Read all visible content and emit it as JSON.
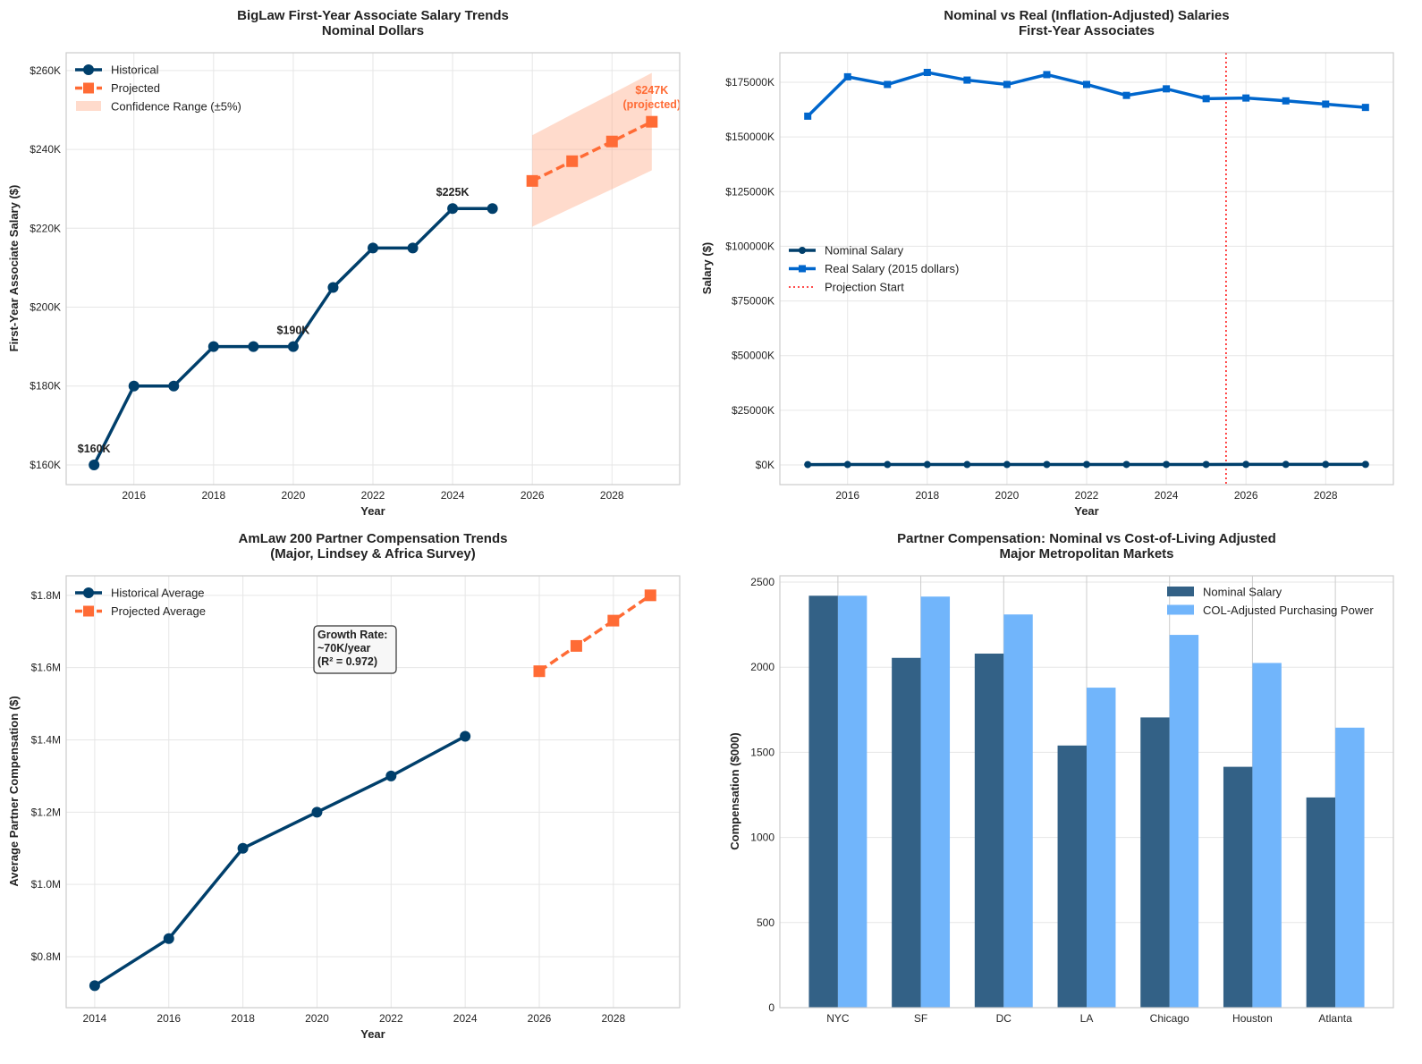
{
  "chart_data": [
    {
      "type": "line",
      "title": [
        "BigLaw First-Year Associate Salary Trends",
        "Nominal Dollars"
      ],
      "xlabel": "Year",
      "ylabel": "First-Year Associate Salary ($)",
      "xlim": [
        2014.3,
        2029.7
      ],
      "ylim": [
        155,
        264.5
      ],
      "xticks": [
        2016,
        2018,
        2020,
        2022,
        2024,
        2026,
        2028
      ],
      "xtick_labels": [
        "2016",
        "2018",
        "2020",
        "2022",
        "2024",
        "2026",
        "2028"
      ],
      "yticks": [
        160,
        180,
        200,
        220,
        240,
        260
      ],
      "ytick_labels": [
        "$160K",
        "$180K",
        "$200K",
        "$220K",
        "$240K",
        "$260K"
      ],
      "grid": true,
      "legend": "top-left",
      "series": [
        {
          "name": "Historical",
          "color": "#003f6b",
          "marker": "circle",
          "dash": false,
          "x": [
            2015,
            2016,
            2017,
            2018,
            2019,
            2020,
            2021,
            2022,
            2023,
            2024,
            2025
          ],
          "y": [
            160,
            180,
            180,
            190,
            190,
            190,
            205,
            215,
            215,
            225,
            225
          ]
        },
        {
          "name": "Projected",
          "color": "#ff6b35",
          "marker": "square",
          "dash": true,
          "x": [
            2026,
            2027,
            2028,
            2029
          ],
          "y": [
            232,
            237,
            242,
            247
          ]
        }
      ],
      "band": {
        "name": "Confidence Range (±5%)",
        "color": "#ffb08f",
        "x": [
          2026,
          2027,
          2028,
          2029
        ],
        "lower": [
          220.4,
          225.2,
          229.9,
          234.7
        ],
        "upper": [
          243.6,
          248.9,
          254.1,
          259.4
        ]
      },
      "annotations": [
        {
          "text": "$160K",
          "x": 2015,
          "y": 160,
          "color": "#222"
        },
        {
          "text": "$190K",
          "x": 2020,
          "y": 190,
          "color": "#222"
        },
        {
          "text": "$225K",
          "x": 2024,
          "y": 225,
          "color": "#222"
        },
        {
          "text": "$247K",
          "text2": "(projected)",
          "x": 2029,
          "y": 247,
          "color": "#ff6b35"
        }
      ]
    },
    {
      "type": "line",
      "title": [
        "Nominal vs Real (Inflation-Adjusted) Salaries",
        "First-Year Associates"
      ],
      "xlabel": "Year",
      "ylabel": "Salary ($)",
      "xlim": [
        2014.3,
        2029.7
      ],
      "ylim": [
        -9000,
        188500
      ],
      "xticks": [
        2016,
        2018,
        2020,
        2022,
        2024,
        2026,
        2028
      ],
      "xtick_labels": [
        "2016",
        "2018",
        "2020",
        "2022",
        "2024",
        "2026",
        "2028"
      ],
      "yticks": [
        0,
        25000,
        50000,
        75000,
        100000,
        125000,
        150000,
        175000
      ],
      "ytick_labels": [
        "$0K",
        "$25000K",
        "$50000K",
        "$75000K",
        "$100000K",
        "$125000K",
        "$150000K",
        "$175000K"
      ],
      "grid": true,
      "legend": "center-left",
      "series": [
        {
          "name": "Nominal Salary",
          "color": "#003f6b",
          "marker": "circle",
          "dash": false,
          "x": [
            2015,
            2016,
            2017,
            2018,
            2019,
            2020,
            2021,
            2022,
            2023,
            2024,
            2025,
            2026,
            2027,
            2028,
            2029
          ],
          "y": [
            160,
            180,
            180,
            190,
            190,
            190,
            205,
            215,
            215,
            225,
            225,
            232,
            237,
            242,
            247
          ]
        },
        {
          "name": "Real Salary (2015 dollars)",
          "color": "#0066cc",
          "marker": "square",
          "dash": false,
          "x": [
            2015,
            2016,
            2017,
            2018,
            2019,
            2020,
            2021,
            2022,
            2023,
            2024,
            2025,
            2026,
            2027,
            2028,
            2029
          ],
          "y": [
            159500,
            177500,
            174000,
            179500,
            176000,
            174000,
            178500,
            174000,
            169000,
            172000,
            167500,
            167800,
            166500,
            165000,
            163500
          ]
        }
      ],
      "vline": {
        "name": "Projection Start",
        "x": 2025.5,
        "color": "#ff3333"
      }
    },
    {
      "type": "line",
      "title": [
        "AmLaw 200 Partner Compensation Trends",
        "(Major, Lindsey & Africa Survey)"
      ],
      "xlabel": "Year",
      "ylabel": "Average Partner Compensation ($)",
      "xlim": [
        2013.23,
        2029.79
      ],
      "ylim": [
        0.659,
        1.854
      ],
      "xticks": [
        2014,
        2016,
        2018,
        2020,
        2022,
        2024,
        2026,
        2028
      ],
      "xtick_labels": [
        "2014",
        "2016",
        "2018",
        "2020",
        "2022",
        "2024",
        "2026",
        "2028"
      ],
      "yticks": [
        0.8,
        1.0,
        1.2,
        1.4,
        1.6,
        1.8
      ],
      "ytick_labels": [
        "$0.8M",
        "$1.0M",
        "$1.2M",
        "$1.4M",
        "$1.6M",
        "$1.8M"
      ],
      "grid": true,
      "legend": "top-left",
      "series": [
        {
          "name": "Historical Average",
          "color": "#003f6b",
          "marker": "circle",
          "dash": false,
          "x": [
            2014,
            2016,
            2018,
            2020,
            2022,
            2024
          ],
          "y": [
            0.72,
            0.85,
            1.1,
            1.2,
            1.3,
            1.41
          ]
        },
        {
          "name": "Projected Average",
          "color": "#ff6b35",
          "marker": "square",
          "dash": true,
          "x": [
            2026,
            2027,
            2028,
            2029
          ],
          "y": [
            1.59,
            1.66,
            1.73,
            1.8
          ]
        }
      ],
      "textbox": [
        "Growth Rate:",
        "~70K/year",
        "(R² = 0.972)"
      ]
    },
    {
      "type": "bar",
      "title": [
        "Partner Compensation: Nominal vs Cost-of-Living Adjusted",
        "Major Metropolitan Markets"
      ],
      "xlabel": "",
      "ylabel": "Compensation ($000)",
      "categories": [
        "NYC",
        "SF",
        "DC",
        "LA",
        "Chicago",
        "Houston",
        "Atlanta"
      ],
      "xlim": [
        -0.7,
        6.7
      ],
      "ylim": [
        0,
        2537
      ],
      "yticks": [
        0,
        500,
        1000,
        1500,
        2000,
        2500
      ],
      "ytick_labels": [
        "0",
        "500",
        "1000",
        "1500",
        "2000",
        "2500"
      ],
      "grid": true,
      "legend": "top-right",
      "series": [
        {
          "name": "Nominal Salary",
          "color": "#336186",
          "values": [
            2420,
            2055,
            2080,
            1540,
            1705,
            1415,
            1235
          ]
        },
        {
          "name": "COL-Adjusted Purchasing Power",
          "color": "#71b5fb",
          "values": [
            2420,
            2415,
            2310,
            1880,
            2190,
            2025,
            1645
          ]
        }
      ]
    }
  ]
}
